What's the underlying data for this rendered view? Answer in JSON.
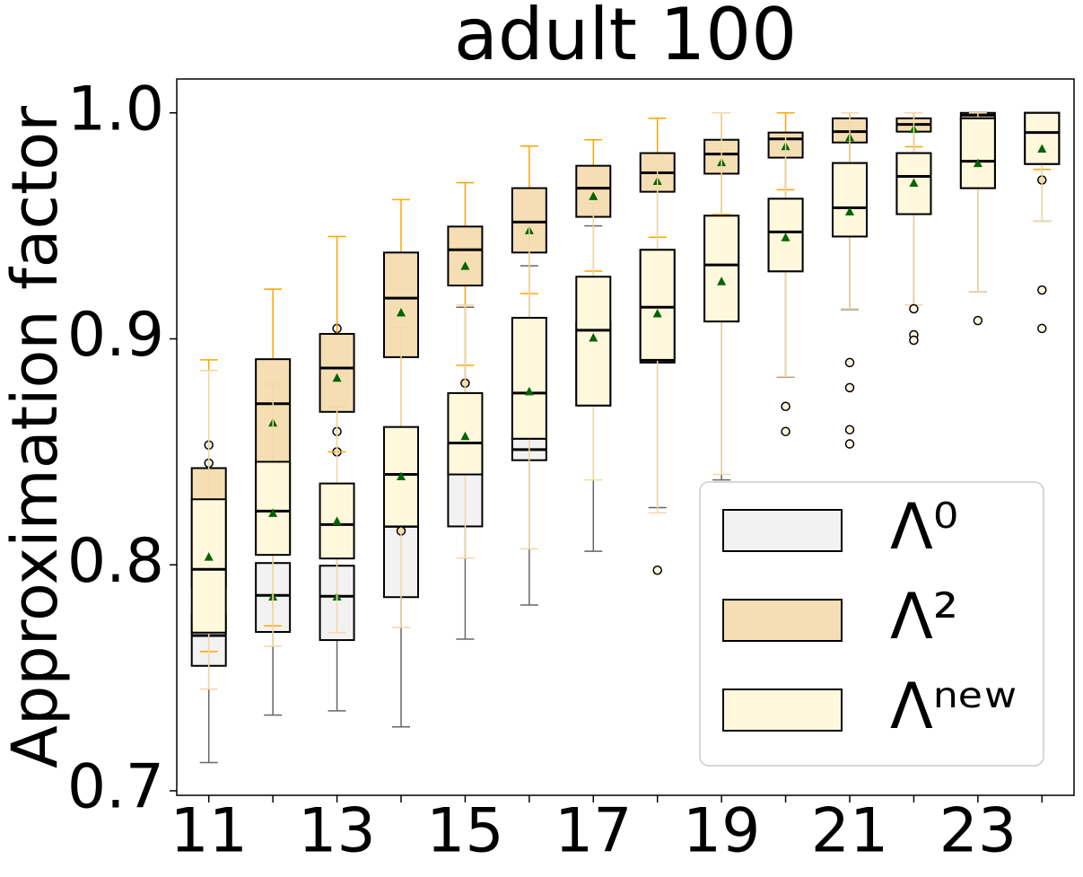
{
  "chart_data": {
    "type": "box",
    "title": "adult 100",
    "y_label": "Approximation factor",
    "categories": [
      "11",
      null,
      "13",
      null,
      "15",
      null,
      "17",
      null,
      "19",
      null,
      "21",
      null,
      "23",
      null
    ],
    "ylim": [
      0.698,
      1.015
    ],
    "yticks": [
      0.7,
      0.8,
      0.9,
      {
        "value": 1.0,
        "label": "1.0"
      }
    ],
    "legend": "lower right",
    "mean_color": "#006400",
    "series": [
      {
        "name": "Λ⁰",
        "color": "#f2f2f2",
        "whisker_color": "#666666",
        "boxes": [
          {
            "whislo": 0.7125,
            "q1": 0.7553,
            "med": 0.7687,
            "q3": 0.7778,
            "whishi": 0.8,
            "mean": 0.775,
            "fliers": [
              0.853,
              0.845
            ]
          },
          {
            "whislo": 0.7335,
            "q1": 0.7703,
            "med": 0.7865,
            "q3": 0.8008,
            "whishi": 0.815,
            "mean": 0.786,
            "fliers": []
          },
          {
            "whislo": 0.7354,
            "q1": 0.7667,
            "med": 0.7861,
            "q3": 0.7996,
            "whishi": 0.81,
            "mean": 0.786,
            "fliers": [
              0.859,
              0.85,
              0.9046
            ]
          },
          {
            "whislo": 0.7283,
            "q1": 0.7857,
            "med": 0.817,
            "q3": 0.8174,
            "whishi": 0.86,
            "mean": 0.8166,
            "fliers": []
          },
          {
            "whislo": 0.7671,
            "q1": 0.817,
            "med": 0.8408,
            "q3": 0.853,
            "whishi": 0.914,
            "mean": 0.8448,
            "fliers": []
          },
          {
            "whislo": 0.7822,
            "q1": 0.8463,
            "med": 0.851,
            "q3": 0.8558,
            "whishi": 0.9323,
            "mean": 0.8697,
            "fliers": []
          },
          {
            "whislo": 0.806,
            "q1": 0.8705,
            "med": 0.876,
            "q3": 0.9073,
            "whishi": 0.95,
            "mean": 0.8974,
            "fliers": []
          },
          {
            "whislo": 0.8253,
            "q1": 0.8895,
            "med": 0.8905,
            "q3": 0.9394,
            "whishi": 0.98,
            "mean": 0.9097,
            "fliers": []
          },
          {
            "whislo": 0.8376,
            "q1": 0.9077,
            "med": 0.932,
            "q3": 0.9545,
            "whishi": 1.0,
            "mean": 0.9267,
            "fliers": []
          },
          {
            "whislo": 0.883,
            "q1": 0.9299,
            "med": 0.947,
            "q3": 0.962,
            "whishi": 0.99,
            "mean": 0.9455,
            "fliers": []
          },
          {
            "whislo": 0.913,
            "q1": 0.9453,
            "med": 0.958,
            "q3": 0.9778,
            "whishi": 1.0,
            "mean": 0.9564,
            "fliers": []
          },
          {
            "whislo": 0.915,
            "q1": 0.9552,
            "med": 0.9719,
            "q3": 0.9822,
            "whishi": 1.0,
            "mean": 0.9691,
            "fliers": []
          },
          {
            "whislo": 0.9208,
            "q1": 0.9667,
            "med": 0.9786,
            "q3": 0.9976,
            "whishi": 1.0,
            "mean": 0.9778,
            "fliers": []
          },
          {
            "whislo": 0.9521,
            "q1": 0.9774,
            "med": 0.9913,
            "q3": 1.0,
            "whishi": 1.0,
            "mean": 0.9842,
            "fliers": []
          }
        ]
      },
      {
        "name": "Λ²",
        "color": "#f5deb3",
        "whisker_color": "#ffa500",
        "boxes": [
          {
            "whislo": 0.7616,
            "q1": 0.79,
            "med": 0.814,
            "q3": 0.8428,
            "whishi": 0.8907,
            "mean": 0.821,
            "fliers": []
          },
          {
            "whislo": 0.773,
            "q1": 0.805,
            "med": 0.8713,
            "q3": 0.891,
            "whishi": 0.922,
            "mean": 0.863,
            "fliers": []
          },
          {
            "whislo": 0.85,
            "q1": 0.8677,
            "med": 0.8871,
            "q3": 0.9022,
            "whishi": 0.9453,
            "mean": 0.8828,
            "fliers": []
          },
          {
            "whislo": 0.86,
            "q1": 0.8919,
            "med": 0.918,
            "q3": 0.9382,
            "whishi": 0.9616,
            "mean": 0.9117,
            "fliers": [
              0.815
            ]
          },
          {
            "whislo": 0.8883,
            "q1": 0.9236,
            "med": 0.9394,
            "q3": 0.9497,
            "whishi": 0.9691,
            "mean": 0.9323,
            "fliers": [
              0.8804
            ]
          },
          {
            "whislo": 0.92,
            "q1": 0.9382,
            "med": 0.9517,
            "q3": 0.9667,
            "whishi": 0.9853,
            "mean": 0.9481,
            "fliers": []
          },
          {
            "whislo": 0.93,
            "q1": 0.954,
            "med": 0.9667,
            "q3": 0.9766,
            "whishi": 0.9881,
            "mean": 0.9632,
            "fliers": []
          },
          {
            "whislo": 0.945,
            "q1": 0.9651,
            "med": 0.9735,
            "q3": 0.9822,
            "whishi": 0.9976,
            "mean": 0.9699,
            "fliers": []
          },
          {
            "whislo": 0.955,
            "q1": 0.9731,
            "med": 0.9818,
            "q3": 0.9881,
            "whishi": 1.0,
            "mean": 0.9782,
            "fliers": []
          },
          {
            "whislo": 0.966,
            "q1": 0.9802,
            "med": 0.9885,
            "q3": 0.9913,
            "whishi": 1.0,
            "mean": 0.9853,
            "fliers": []
          },
          {
            "whislo": 0.975,
            "q1": 0.9869,
            "med": 0.9917,
            "q3": 0.9976,
            "whishi": 1.0,
            "mean": 0.9893,
            "fliers": []
          },
          {
            "whislo": 0.985,
            "q1": 0.9917,
            "med": 0.9949,
            "q3": 0.9976,
            "whishi": 1.0,
            "mean": 0.9929,
            "fliers": []
          },
          {
            "whislo": 0.995,
            "q1": 0.9976,
            "med": 0.999,
            "q3": 1.0,
            "whishi": 1.0,
            "mean": 0.996,
            "fliers": []
          },
          {
            "whislo": 0.975,
            "q1": 0.9774,
            "med": 0.9913,
            "q3": 1.0,
            "whishi": 1.0,
            "mean": 0.9976,
            "fliers": [
              0.9703
            ]
          }
        ]
      },
      {
        "name": "Λⁿᵉʷ",
        "color": "#fff8dc",
        "whisker_color": "#efd9a6",
        "boxes": [
          {
            "whislo": 0.745,
            "q1": 0.77,
            "med": 0.798,
            "q3": 0.829,
            "whishi": 0.886,
            "mean": 0.8036,
            "fliers": []
          },
          {
            "whislo": 0.764,
            "q1": 0.8044,
            "med": 0.8238,
            "q3": 0.8456,
            "whishi": 0.88,
            "mean": 0.823,
            "fliers": []
          },
          {
            "whislo": 0.77,
            "q1": 0.8028,
            "med": 0.8178,
            "q3": 0.836,
            "whishi": 0.87,
            "mean": 0.8194,
            "fliers": []
          },
          {
            "whislo": 0.7723,
            "q1": 0.817,
            "med": 0.84,
            "q3": 0.861,
            "whishi": 0.905,
            "mean": 0.8392,
            "fliers": []
          },
          {
            "whislo": 0.803,
            "q1": 0.84,
            "med": 0.8539,
            "q3": 0.876,
            "whishi": 0.915,
            "mean": 0.857,
            "fliers": []
          },
          {
            "whislo": 0.8071,
            "q1": 0.8558,
            "med": 0.876,
            "q3": 0.9093,
            "whishi": 0.95,
            "mean": 0.8768,
            "fliers": []
          },
          {
            "whislo": 0.8376,
            "q1": 0.8705,
            "med": 0.9038,
            "q3": 0.9275,
            "whishi": 0.96,
            "mean": 0.9006,
            "fliers": []
          },
          {
            "whislo": 0.823,
            "q1": 0.8907,
            "med": 0.914,
            "q3": 0.9394,
            "whishi": 0.975,
            "mean": 0.9113,
            "fliers": [
              0.7976
            ]
          },
          {
            "whislo": 0.84,
            "q1": 0.9077,
            "med": 0.9327,
            "q3": 0.9545,
            "whishi": 1.0,
            "mean": 0.9255,
            "fliers": []
          },
          {
            "whislo": 0.8832,
            "q1": 0.9299,
            "med": 0.9473,
            "q3": 0.962,
            "whishi": 0.99,
            "mean": 0.945,
            "fliers": [
              0.8701,
              0.859
            ]
          },
          {
            "whislo": 0.9133,
            "q1": 0.9453,
            "med": 0.958,
            "q3": 0.9778,
            "whishi": 1.0,
            "mean": 0.9564,
            "fliers": [
              0.8895,
              0.8784,
              0.8598,
              0.8535
            ]
          },
          {
            "whislo": 0.915,
            "q1": 0.9552,
            "med": 0.9719,
            "q3": 0.9822,
            "whishi": 1.0,
            "mean": 0.9691,
            "fliers": [
              0.9133,
              0.9018,
              0.8994
            ]
          },
          {
            "whislo": 0.9208,
            "q1": 0.9667,
            "med": 0.9786,
            "q3": 0.9976,
            "whishi": 1.0,
            "mean": 0.9778,
            "fliers": [
              0.9081
            ]
          },
          {
            "whislo": 0.9521,
            "q1": 0.9774,
            "med": 0.9913,
            "q3": 1.0,
            "whishi": 1.0,
            "mean": 0.9842,
            "fliers": [
              0.9216,
              0.9046
            ]
          }
        ]
      }
    ]
  }
}
